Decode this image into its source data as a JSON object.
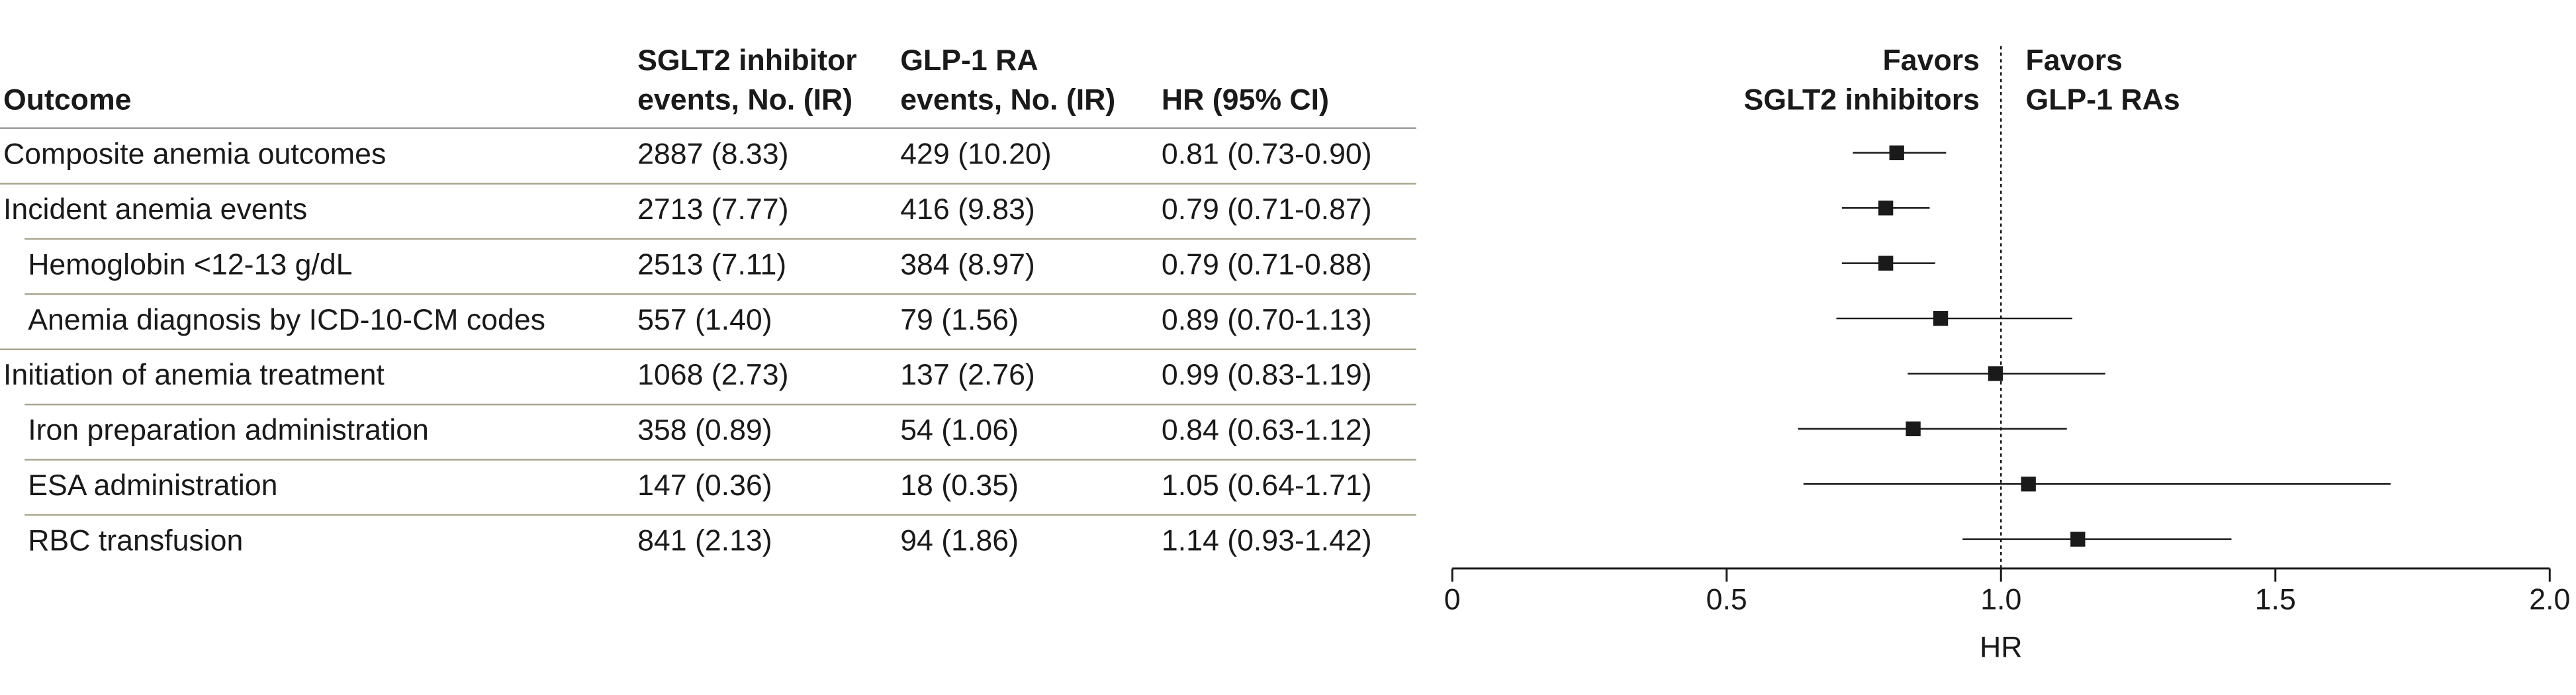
{
  "chart_data": {
    "type": "forest",
    "category_header": "Outcome",
    "categories": [
      "Composite anemia outcomes",
      "Incident anemia events",
      "Hemoglobin <12-13 g/dL",
      "Anemia diagnosis by ICD-10-CM codes",
      "Initiation of anemia treatment",
      "Iron preparation administration",
      "ESA administration",
      "RBC transfusion"
    ],
    "levels": [
      0,
      0,
      1,
      1,
      0,
      1,
      1,
      1
    ],
    "columns": [
      {
        "header": [
          "SGLT2 inhibitor",
          "events, No. (IR)"
        ],
        "cells": [
          "2887 (8.33)",
          "2713 (7.77)",
          "2513 (7.11)",
          "557 (1.40)",
          "1068 (2.73)",
          "358 (0.89)",
          "147 (0.36)",
          "841 (2.13)"
        ]
      },
      {
        "header": [
          "GLP-1 RA",
          "events, No. (IR)"
        ],
        "cells": [
          "429 (10.20)",
          "416 (9.83)",
          "384 (8.97)",
          "79 (1.56)",
          "137 (2.76)",
          "54 (1.06)",
          "18 (0.35)",
          "94 (1.86)"
        ]
      }
    ],
    "value_header": "HR (95% CI)",
    "values": [
      0.81,
      0.79,
      0.79,
      0.89,
      0.99,
      0.84,
      1.05,
      1.14
    ],
    "lower": [
      0.73,
      0.71,
      0.71,
      0.7,
      0.83,
      0.63,
      0.64,
      0.93
    ],
    "upper": [
      0.9,
      0.87,
      0.88,
      1.13,
      1.19,
      1.12,
      1.71,
      1.42
    ],
    "value_labels": [
      "0.81 (0.73-0.90)",
      "0.79 (0.71-0.87)",
      "0.79 (0.71-0.88)",
      "0.89 (0.70-1.13)",
      "0.99 (0.83-1.19)",
      "0.84 (0.63-1.12)",
      "1.05 (0.64-1.71)",
      "1.14 (0.93-1.42)"
    ],
    "xlim": [
      0,
      2
    ],
    "xticks": [
      0,
      0.5,
      {
        "value": 1,
        "label": "1.0"
      },
      1.5,
      {
        "value": 2,
        "label": "2.0"
      }
    ],
    "xlabel": "HR",
    "reference_line": 1,
    "favors_left": [
      "Favors",
      "SGLT2 inhibitors"
    ],
    "favors_right": [
      "Favors",
      "GLP-1 RAs"
    ],
    "color": "#1a1a1a"
  }
}
